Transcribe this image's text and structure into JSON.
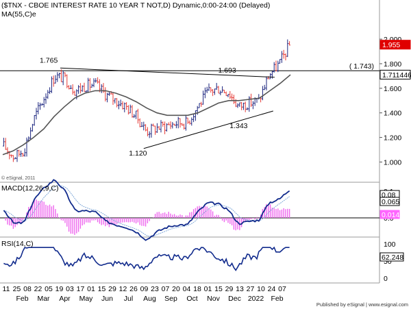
{
  "header": {
    "title": "($TNX - CBOE INTEREST RATE 10 YEAR T NOT,D) Dynamic,0:00-24:00 (Delayed)",
    "study": "MA(55,C)e",
    "copyright": "© eSignal, 2011"
  },
  "footer": {
    "published": "Published by eSignal | www.esignal.com"
  },
  "colors": {
    "bull": "#1a237e",
    "bear": "#e53935",
    "ma": "#555555",
    "macd": "#102a8c",
    "signal": "#7fa8d8",
    "histogram": "#ee66ee",
    "rsi": "#102a8c",
    "last_price_tag": "#e00000",
    "level_tag": "#ffffff"
  },
  "price_panel": {
    "ylim": [
      0.88,
      2.14
    ],
    "ticks": [
      "2.000",
      "1.800",
      "1.600",
      "1.400",
      "1.200",
      "1.000"
    ],
    "tick_values": [
      2.0,
      1.8,
      1.6,
      1.4,
      1.2,
      1.0
    ],
    "tags": [
      {
        "label": "1.955",
        "value": 1.955,
        "style": "red"
      },
      {
        "label": "1.711446",
        "value": 1.711,
        "style": "outline"
      }
    ],
    "level_line": {
      "label": "( 1.743)",
      "value": 1.743
    },
    "annotations": [
      {
        "text": "1.765",
        "x": "Mar",
        "value": 1.765
      },
      {
        "text": "1.693",
        "x": "Nov",
        "value": 1.693
      },
      {
        "text": "1.343",
        "x": "Dec",
        "value": 1.343
      },
      {
        "text": "1.120",
        "x": "Jul",
        "value": 1.12
      }
    ]
  },
  "macd_panel": {
    "title": "MACD(12,26,9,C)",
    "ticks": [
      "0.1",
      "0.0"
    ],
    "tags": [
      {
        "label": "0.08",
        "style": "outline"
      },
      {
        "label": "0.065",
        "style": "outline"
      },
      {
        "label": "0.014",
        "style": "magenta"
      }
    ]
  },
  "rsi_panel": {
    "title": "RSI(14,C)",
    "ticks": [
      "100",
      "50",
      "0"
    ],
    "tags": [
      {
        "label": "62.248",
        "style": "outline"
      }
    ]
  },
  "x_axis": {
    "days": [
      "11",
      "25",
      "08",
      "22",
      "05",
      "19",
      "03",
      "17",
      "01",
      "15",
      "29",
      "12",
      "26",
      "09",
      "23",
      "07",
      "20",
      "04",
      "18",
      "01",
      "15",
      "29",
      "13",
      "27",
      "10",
      "24",
      "07"
    ],
    "months": [
      {
        "label": "Feb",
        "at": 1
      },
      {
        "label": "Mar",
        "at": 3
      },
      {
        "label": "Apr",
        "at": 5
      },
      {
        "label": "May",
        "at": 7
      },
      {
        "label": "Jun",
        "at": 9
      },
      {
        "label": "Jul",
        "at": 11
      },
      {
        "label": "Aug",
        "at": 13
      },
      {
        "label": "Sep",
        "at": 15
      },
      {
        "label": "Oct",
        "at": 17
      },
      {
        "label": "Nov",
        "at": 19
      },
      {
        "label": "Dec",
        "at": 21
      },
      {
        "label": "2022",
        "at": 23
      },
      {
        "label": "Feb",
        "at": 25
      }
    ]
  },
  "chart_data": {
    "type": "line",
    "title": "($TNX - CBOE INTEREST RATE 10 YEAR T NOT,D) Dynamic,0:00-24:00 (Delayed)",
    "xlabel": "",
    "ylabel": "",
    "ylim": [
      0.88,
      2.14
    ],
    "x": [
      "Jan 11",
      "Jan 25",
      "Feb 08",
      "Feb 22",
      "Mar 08",
      "Mar 22",
      "Apr 05",
      "Apr 19",
      "May 03",
      "May 17",
      "Jun 01",
      "Jun 15",
      "Jun 29",
      "Jul 12",
      "Jul 26",
      "Aug 09",
      "Aug 23",
      "Sep 07",
      "Sep 20",
      "Oct 04",
      "Oct 18",
      "Nov 01",
      "Nov 15",
      "Nov 29",
      "Dec 13",
      "Dec 27",
      "Jan 10",
      "Jan 24",
      "Feb 07"
    ],
    "series": [
      {
        "name": "$TNX",
        "values": [
          1.13,
          1.04,
          1.1,
          1.36,
          1.53,
          1.7,
          1.68,
          1.58,
          1.62,
          1.63,
          1.55,
          1.5,
          1.45,
          1.37,
          1.25,
          1.28,
          1.3,
          1.32,
          1.32,
          1.45,
          1.57,
          1.6,
          1.57,
          1.45,
          1.48,
          1.5,
          1.71,
          1.8,
          1.95
        ]
      },
      {
        "name": "MA(55,C)e",
        "values": [
          1.06,
          1.09,
          1.14,
          1.2,
          1.27,
          1.37,
          1.45,
          1.52,
          1.56,
          1.58,
          1.58,
          1.56,
          1.53,
          1.49,
          1.44,
          1.4,
          1.38,
          1.38,
          1.38,
          1.4,
          1.44,
          1.48,
          1.5,
          1.5,
          1.51,
          1.52,
          1.58,
          1.64,
          1.71
        ]
      }
    ],
    "annotations": [
      {
        "label": "1.765",
        "value": 1.765
      },
      {
        "label": "1.693",
        "value": 1.693
      },
      {
        "label": "1.343",
        "value": 1.343
      },
      {
        "label": "1.120",
        "value": 1.12
      }
    ],
    "reference_line": {
      "label": "( 1.743)",
      "value": 1.743
    },
    "last_value": 1.955,
    "grid": false,
    "legend": "top-left"
  }
}
